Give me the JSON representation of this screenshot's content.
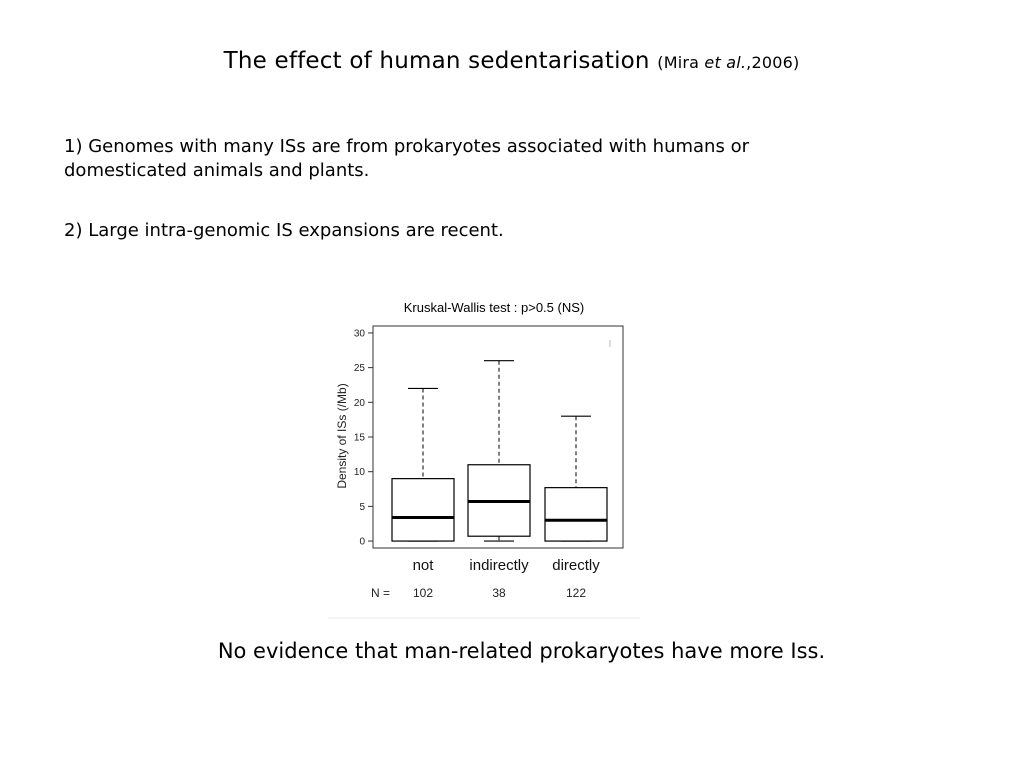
{
  "slide": {
    "title": "The effect of human sedentarisation",
    "citation_author": "Mira ",
    "citation_etal": "et al.",
    "citation_year": ",2006",
    "point1": "1) Genomes with many ISs are from prokaryotes associated with humans or domesticated animals and plants.",
    "point2": "2) Large intra-genomic IS expansions are recent.",
    "conclusion": "No evidence that man-related prokaryotes have more Iss."
  },
  "chart_data": {
    "type": "boxplot",
    "title": "Kruskal-Wallis test : p>0.5 (NS)",
    "ylabel": "Density of ISs (/Mb)",
    "xlabel": "",
    "ylim": [
      -1,
      31
    ],
    "yticks": [
      "0",
      "5",
      "10",
      "15",
      "20",
      "25",
      "30"
    ],
    "grid": false,
    "n_label": "N =",
    "categories": [
      "not",
      "indirectly",
      "directly"
    ],
    "n": [
      "102",
      "38",
      "122"
    ],
    "boxes": [
      {
        "whisker_low": 0,
        "q1": 0,
        "median": 3.4,
        "q3": 9,
        "whisker_high": 22
      },
      {
        "whisker_low": 0,
        "q1": 0.7,
        "median": 5.7,
        "q3": 11,
        "whisker_high": 26
      },
      {
        "whisker_low": 0,
        "q1": 0,
        "median": 3,
        "q3": 7.7,
        "whisker_high": 18
      }
    ],
    "box_color": "#000000"
  }
}
